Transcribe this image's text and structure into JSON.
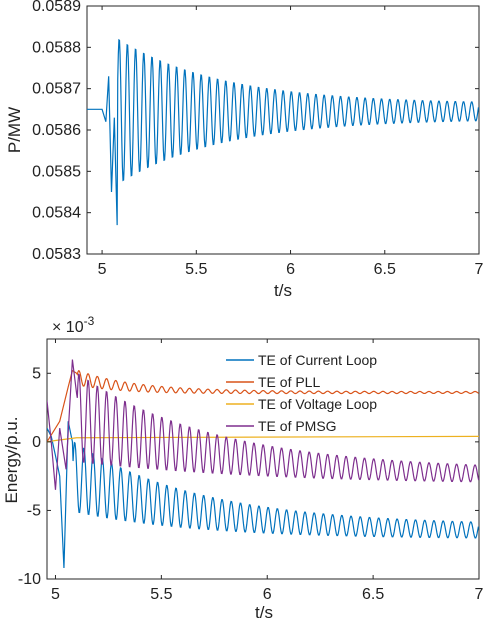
{
  "chart_data": [
    {
      "type": "line",
      "xlabel": "t/s",
      "ylabel": "P/MW",
      "xlim": [
        4.92,
        7
      ],
      "ylim": [
        0.0583,
        0.0589
      ],
      "xticks": [
        {
          "value": 5,
          "label": "5"
        },
        {
          "value": 5.5,
          "label": "5.5"
        },
        {
          "value": 6,
          "label": "6"
        },
        {
          "value": 6.5,
          "label": "6.5"
        },
        {
          "value": 7,
          "label": "7"
        }
      ],
      "yticks": [
        {
          "value": 0.0583,
          "label": "0.0583"
        },
        {
          "value": 0.0584,
          "label": "0.0584"
        },
        {
          "value": 0.0585,
          "label": "0.0585"
        },
        {
          "value": 0.0586,
          "label": "0.0586"
        },
        {
          "value": 0.0587,
          "label": "0.0587"
        },
        {
          "value": 0.0588,
          "label": "0.0588"
        },
        {
          "value": 0.0589,
          "label": "0.0589"
        }
      ],
      "grid": false,
      "series": [
        {
          "color": "#0072BD",
          "steady_before": 0.05865,
          "fault_time": 5.0,
          "fault_points": [
            [
              5.0,
              0.05865
            ],
            [
              5.02,
              0.05862
            ],
            [
              5.035,
              0.05873
            ],
            [
              5.05,
              0.05845
            ],
            [
              5.065,
              0.05863
            ],
            [
              5.08,
              0.05837
            ]
          ],
          "oscillation": {
            "start": 5.08,
            "end": 7.0,
            "center": 0.058645,
            "amp_start": 0.00018,
            "amp_end": 1.8e-05,
            "decay_tau": 0.55,
            "period": 0.0435
          }
        }
      ]
    },
    {
      "type": "line",
      "xlabel": "t/s",
      "ylabel": "Energy/p.u.",
      "scale_label": "× 10",
      "scale_exponent": "-3",
      "xlim": [
        4.96,
        7
      ],
      "ylim": [
        -10,
        7.5
      ],
      "xticks": [
        {
          "value": 5,
          "label": "5"
        },
        {
          "value": 5.5,
          "label": "5.5"
        },
        {
          "value": 6,
          "label": "6"
        },
        {
          "value": 6.5,
          "label": "6.5"
        },
        {
          "value": 7,
          "label": "7"
        }
      ],
      "yticks": [
        {
          "value": -10,
          "label": "-10"
        },
        {
          "value": -5,
          "label": "-5"
        },
        {
          "value": 0,
          "label": "0"
        },
        {
          "value": 5,
          "label": "5"
        }
      ],
      "grid": false,
      "legend": "top-right",
      "series": [
        {
          "name": "TE of Current Loop",
          "color": "#0072BD",
          "start_points": [
            [
              4.96,
              1.0
            ],
            [
              4.98,
              0.4
            ],
            [
              5.0,
              -1.0
            ],
            [
              5.02,
              -2.5
            ],
            [
              5.04,
              -9.2
            ],
            [
              5.06,
              1.5
            ],
            [
              5.08,
              0.0
            ]
          ],
          "oscillation": {
            "start": 5.08,
            "end": 7.0,
            "mean_start": -2.5,
            "mean_end": -6.6,
            "mean_tau": 0.6,
            "amp_start": 2.6,
            "amp_end": 0.5,
            "amp_tau": 0.6,
            "period": 0.0435
          }
        },
        {
          "name": "TE of PLL",
          "color": "#D95319",
          "start_points": [
            [
              4.96,
              0.0
            ],
            [
              5.02,
              1.5
            ],
            [
              5.06,
              4.0
            ],
            [
              5.08,
              5.2
            ],
            [
              5.1,
              5.0
            ]
          ],
          "oscillation": {
            "start": 5.1,
            "end": 7.0,
            "mean_start": 4.7,
            "mean_end": 3.6,
            "mean_tau": 0.25,
            "amp_start": 0.55,
            "amp_end": 0.07,
            "amp_tau": 0.35,
            "period": 0.0435
          }
        },
        {
          "name": "TE of Voltage Loop",
          "color": "#EDB120",
          "start_points": [
            [
              4.96,
              0.0
            ],
            [
              5.0,
              0.1
            ],
            [
              5.1,
              0.3
            ],
            [
              7.0,
              0.4
            ]
          ]
        },
        {
          "name": "TE of PMSG",
          "color": "#7E2F8E",
          "start_points": [
            [
              4.96,
              3.0
            ],
            [
              4.98,
              0.0
            ],
            [
              5.0,
              -3.5
            ],
            [
              5.02,
              1.0
            ],
            [
              5.05,
              -2.0
            ],
            [
              5.08,
              6.0
            ],
            [
              5.1,
              3.5
            ]
          ],
          "oscillation": {
            "start": 5.1,
            "end": 7.0,
            "mean_start": 1.8,
            "mean_end": -2.6,
            "mean_tau": 0.7,
            "amp_start": 3.3,
            "amp_end": 0.5,
            "amp_tau": 0.6,
            "period": 0.0435
          }
        }
      ]
    }
  ]
}
